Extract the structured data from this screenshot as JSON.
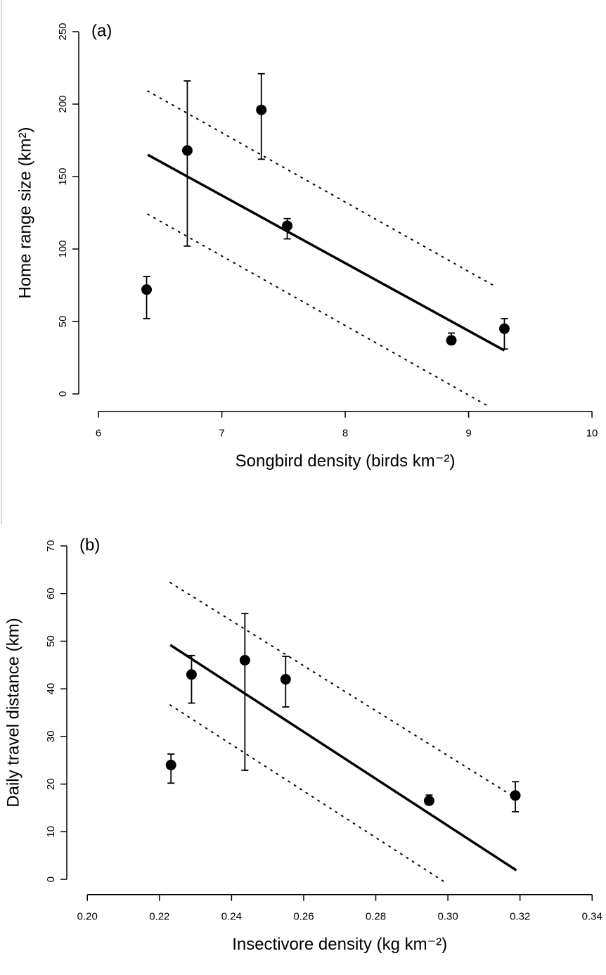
{
  "chart_data": [
    {
      "type": "scatter",
      "title": "(a)",
      "x_label": "Songbird density  (birds km⁻²)",
      "y_label": "Home range size  (km²)",
      "color": "#000000",
      "x": [
        6.39,
        6.72,
        7.32,
        7.53,
        8.86,
        9.29
      ],
      "values": [
        72,
        168,
        196,
        116,
        37,
        45
      ],
      "lower": [
        52,
        102,
        162,
        107,
        35,
        31
      ],
      "upper": [
        81,
        216,
        221,
        121,
        42,
        52
      ],
      "fit": {
        "x": [
          6.4,
          9.29
        ],
        "values": [
          165,
          30
        ]
      },
      "bands": [
        {
          "x": [
            6.4,
            9.22
          ],
          "values": [
            209,
            74
          ]
        },
        {
          "x": [
            6.4,
            9.15
          ],
          "values": [
            124,
            -8
          ]
        }
      ],
      "xlim": [
        5.84,
        10.1
      ],
      "ylim": [
        -12,
        255
      ],
      "xticks": [
        6,
        7,
        8,
        9,
        10
      ],
      "yticks": [
        0,
        50,
        100,
        150,
        200,
        250
      ]
    },
    {
      "type": "scatter",
      "title": "(b)",
      "x_label": "Insectivore density  (kg km⁻²)",
      "y_label": "Daily travel distance  (km)",
      "color": "#000000",
      "x": [
        0.2232,
        0.2289,
        0.2437,
        0.255,
        0.2948,
        0.3187
      ],
      "values": [
        24,
        43,
        46,
        42,
        16.5,
        17.6
      ],
      "lower": [
        20.2,
        37,
        22.9,
        36.2,
        15.8,
        14.2
      ],
      "upper": [
        26.3,
        47,
        55.8,
        46.8,
        17.7,
        20.5
      ],
      "fit": {
        "x": [
          0.223,
          0.319
        ],
        "values": [
          49.2,
          1.9
        ]
      },
      "bands": [
        {
          "x": [
            0.223,
            0.319
          ],
          "values": [
            62.3,
            17
          ]
        },
        {
          "x": [
            0.223,
            0.2998
          ],
          "values": [
            36.6,
            -0.9
          ]
        }
      ],
      "xlim": [
        0.1943,
        0.342
      ],
      "ylim": [
        -3.2,
        72
      ],
      "xticks": [
        {
          "value": 0.2,
          "label": "0.20"
        },
        0.22,
        0.24,
        0.26,
        0.28,
        {
          "value": 0.3,
          "label": "0.30"
        },
        0.32,
        0.34
      ],
      "yticks": [
        0,
        10,
        20,
        30,
        40,
        50,
        60,
        70
      ]
    }
  ]
}
